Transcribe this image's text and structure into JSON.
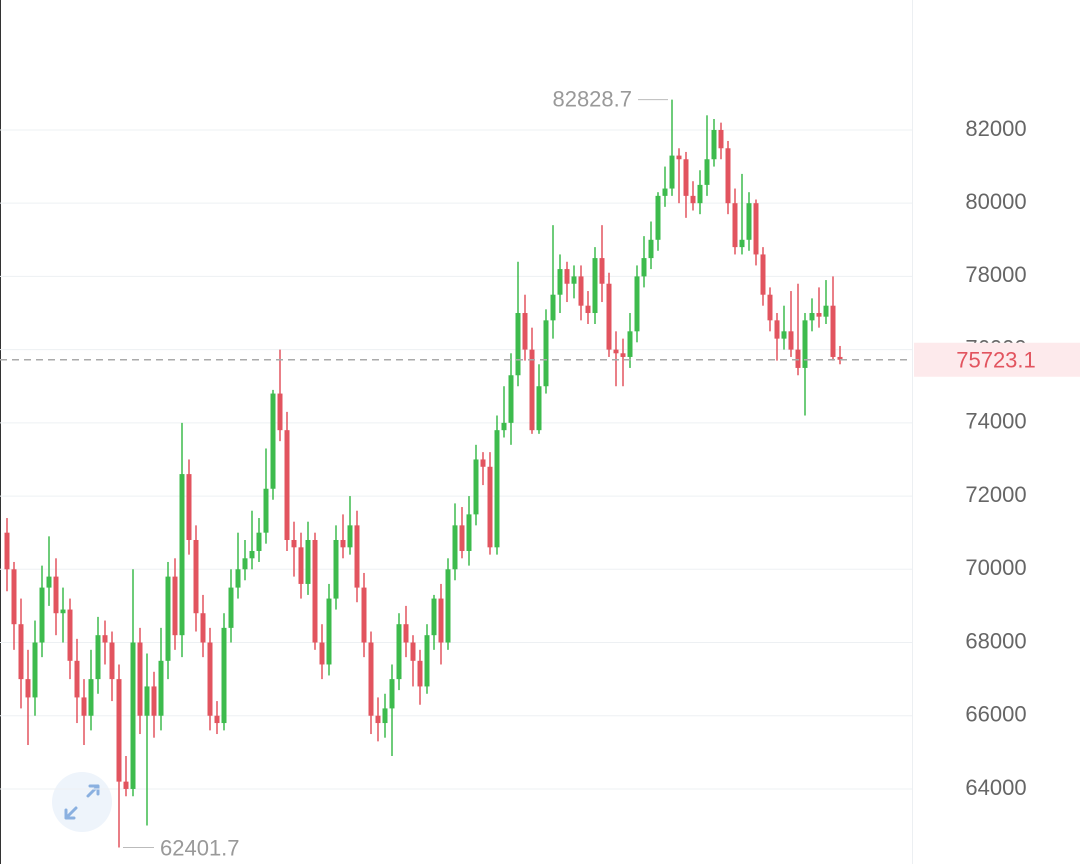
{
  "chart_data": {
    "type": "candlestick",
    "up_color": "#3dbb4d",
    "down_color": "#e2545f",
    "ylim": [
      61950,
      85550
    ],
    "yticks": [
      64000,
      66000,
      68000,
      70000,
      72000,
      74000,
      76000,
      78000,
      80000,
      82000
    ],
    "grid": true,
    "high_marker": 82828.7,
    "low_marker": 62401.7,
    "last_price": 75723.1,
    "candles": [
      [
        71000,
        71400,
        69400,
        70000
      ],
      [
        70000,
        70200,
        67800,
        68500
      ],
      [
        68500,
        69200,
        66200,
        67000
      ],
      [
        67000,
        67800,
        65200,
        66500
      ],
      [
        66500,
        68600,
        66000,
        68000
      ],
      [
        68000,
        70100,
        67600,
        69500
      ],
      [
        69500,
        70900,
        69000,
        69800
      ],
      [
        69800,
        70300,
        68200,
        68800
      ],
      [
        68800,
        69500,
        68000,
        68900
      ],
      [
        68900,
        69200,
        67000,
        67500
      ],
      [
        67500,
        68100,
        65800,
        66500
      ],
      [
        66500,
        67000,
        65200,
        66000
      ],
      [
        66000,
        67800,
        65600,
        67000
      ],
      [
        67000,
        68700,
        66600,
        68200
      ],
      [
        68200,
        68600,
        67400,
        68000
      ],
      [
        68000,
        68300,
        66400,
        67000
      ],
      [
        67000,
        67400,
        62401.7,
        64200
      ],
      [
        64200,
        64900,
        63800,
        64000
      ],
      [
        64000,
        70000,
        63800,
        68000
      ],
      [
        68000,
        68400,
        65500,
        66000
      ],
      [
        66000,
        67700,
        63000,
        66800
      ],
      [
        66800,
        67200,
        65400,
        66000
      ],
      [
        66000,
        68400,
        65600,
        67500
      ],
      [
        67500,
        70200,
        67000,
        69800
      ],
      [
        69800,
        70300,
        67800,
        68200
      ],
      [
        68200,
        74000,
        67600,
        72600
      ],
      [
        72600,
        73000,
        70400,
        70800
      ],
      [
        70800,
        71200,
        68300,
        68800
      ],
      [
        68800,
        69300,
        67600,
        68000
      ],
      [
        68000,
        68400,
        65600,
        66000
      ],
      [
        66000,
        66400,
        65500,
        65800
      ],
      [
        65800,
        68800,
        65600,
        68400
      ],
      [
        68400,
        70000,
        68000,
        69500
      ],
      [
        69500,
        71000,
        69200,
        70000
      ],
      [
        70000,
        70800,
        69700,
        70300
      ],
      [
        70300,
        71600,
        70000,
        70500
      ],
      [
        70500,
        71400,
        70200,
        71000
      ],
      [
        71000,
        73300,
        70700,
        72200
      ],
      [
        72200,
        74900,
        71900,
        74800
      ],
      [
        74800,
        76000,
        73500,
        73800
      ],
      [
        73800,
        74300,
        70500,
        70800
      ],
      [
        70800,
        71300,
        69800,
        70600
      ],
      [
        70600,
        71000,
        69200,
        69600
      ],
      [
        69600,
        71300,
        69300,
        70800
      ],
      [
        70800,
        71000,
        67800,
        68000
      ],
      [
        68000,
        68500,
        67000,
        67400
      ],
      [
        67400,
        69600,
        67100,
        69200
      ],
      [
        69200,
        71200,
        68900,
        70800
      ],
      [
        70800,
        71500,
        70300,
        70600
      ],
      [
        70600,
        72000,
        70400,
        71200
      ],
      [
        71200,
        71600,
        69100,
        69500
      ],
      [
        69500,
        69900,
        67600,
        68000
      ],
      [
        68000,
        68300,
        65500,
        66000
      ],
      [
        66000,
        66500,
        65300,
        65800
      ],
      [
        65800,
        66600,
        65400,
        66200
      ],
      [
        66200,
        67400,
        64900,
        67000
      ],
      [
        67000,
        68800,
        66700,
        68500
      ],
      [
        68500,
        69000,
        67600,
        68000
      ],
      [
        68000,
        68200,
        66800,
        67500
      ],
      [
        67500,
        67800,
        66300,
        66800
      ],
      [
        66800,
        68500,
        66600,
        68200
      ],
      [
        68200,
        69300,
        67800,
        69200
      ],
      [
        69200,
        69600,
        67400,
        68000
      ],
      [
        68000,
        70300,
        67800,
        70000
      ],
      [
        70000,
        71800,
        69700,
        71200
      ],
      [
        71200,
        71700,
        70300,
        70500
      ],
      [
        70500,
        72000,
        70100,
        71500
      ],
      [
        71500,
        73400,
        71200,
        73000
      ],
      [
        73000,
        73200,
        72300,
        72800
      ],
      [
        72800,
        73200,
        70400,
        70600
      ],
      [
        70600,
        74200,
        70400,
        73800
      ],
      [
        73800,
        75000,
        73600,
        74000
      ],
      [
        74000,
        75900,
        73400,
        75300
      ],
      [
        75300,
        78400,
        75000,
        77000
      ],
      [
        77000,
        77500,
        75700,
        76000
      ],
      [
        76000,
        76600,
        73700,
        73800
      ],
      [
        73800,
        75600,
        73700,
        75000
      ],
      [
        75000,
        77100,
        74800,
        76800
      ],
      [
        76800,
        79400,
        76300,
        77500
      ],
      [
        77500,
        78600,
        77000,
        78200
      ],
      [
        78200,
        78400,
        77300,
        77800
      ],
      [
        77800,
        78300,
        77400,
        78000
      ],
      [
        78000,
        78300,
        76800,
        77200
      ],
      [
        77200,
        77600,
        76700,
        77000
      ],
      [
        77000,
        78800,
        76700,
        78500
      ],
      [
        78500,
        79400,
        77300,
        77800
      ],
      [
        77800,
        78100,
        75800,
        76000
      ],
      [
        76000,
        76500,
        75000,
        75900
      ],
      [
        75900,
        76300,
        75000,
        75800
      ],
      [
        75800,
        77000,
        75500,
        76500
      ],
      [
        76500,
        78300,
        76200,
        78000
      ],
      [
        78000,
        79100,
        77700,
        78500
      ],
      [
        78500,
        79500,
        78200,
        79000
      ],
      [
        79000,
        80300,
        78700,
        80200
      ],
      [
        80200,
        81000,
        79900,
        80400
      ],
      [
        80400,
        82828.7,
        80200,
        81300
      ],
      [
        81300,
        81500,
        80000,
        81200
      ],
      [
        81200,
        81400,
        79600,
        80200
      ],
      [
        80200,
        80600,
        79800,
        80000
      ],
      [
        80000,
        80900,
        79700,
        80500
      ],
      [
        80500,
        82400,
        80200,
        81200
      ],
      [
        81200,
        82300,
        81000,
        82000
      ],
      [
        82000,
        82200,
        81200,
        81500
      ],
      [
        81500,
        81700,
        79700,
        80000
      ],
      [
        80000,
        80400,
        78600,
        78800
      ],
      [
        78800,
        80800,
        78600,
        79000
      ],
      [
        79000,
        80300,
        78700,
        80000
      ],
      [
        80000,
        80100,
        78300,
        78600
      ],
      [
        78600,
        78800,
        77200,
        77500
      ],
      [
        77500,
        77700,
        76500,
        76800
      ],
      [
        76800,
        77000,
        75700,
        76300
      ],
      [
        76300,
        77200,
        76000,
        76500
      ],
      [
        76500,
        77600,
        75800,
        76000
      ],
      [
        76000,
        77800,
        75300,
        75500
      ],
      [
        75500,
        77000,
        74200,
        76800
      ],
      [
        76800,
        77400,
        76500,
        77000
      ],
      [
        77000,
        77700,
        76600,
        76900
      ],
      [
        76900,
        77900,
        76700,
        77200
      ],
      [
        77200,
        78000,
        75700,
        75800
      ],
      [
        75800,
        76100,
        75600,
        75723.1
      ]
    ]
  }
}
